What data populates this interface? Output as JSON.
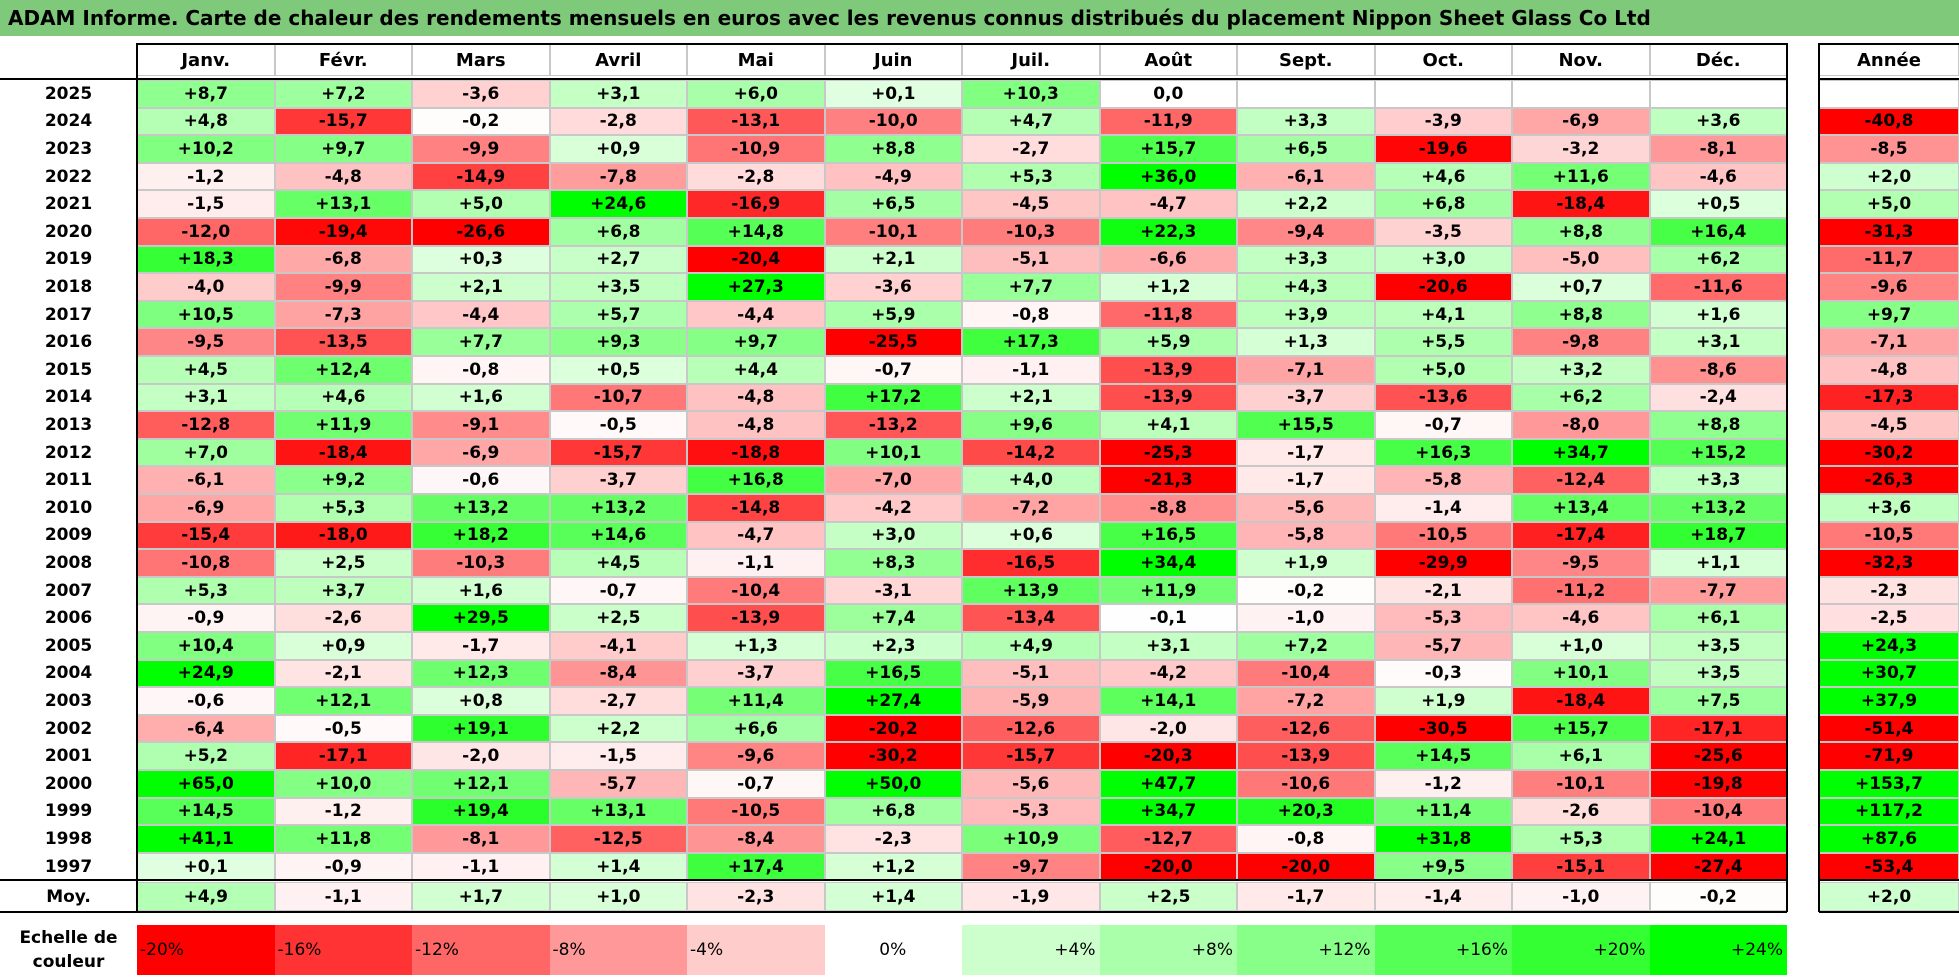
{
  "title": "ADAM Informe. Carte de chaleur des rendements mensuels en euros avec les revenus connus distribués du placement Nippon Sheet Glass Co Ltd",
  "chart_data": {
    "type": "heatmap",
    "columns": [
      "Janv.",
      "Févr.",
      "Mars",
      "Avril",
      "Mai",
      "Juin",
      "Juil.",
      "Août",
      "Sept.",
      "Oct.",
      "Nov.",
      "Déc."
    ],
    "year_column": "Année",
    "rows": [
      {
        "year": "2025",
        "values": [
          "+8,7",
          "+7,2",
          "-3,6",
          "+3,1",
          "+6,0",
          "+0,1",
          "+10,3",
          "0,0",
          "",
          "",
          "",
          ""
        ],
        "annual": ""
      },
      {
        "year": "2024",
        "values": [
          "+4,8",
          "-15,7",
          "-0,2",
          "-2,8",
          "-13,1",
          "-10,0",
          "+4,7",
          "-11,9",
          "+3,3",
          "-3,9",
          "-6,9",
          "+3,6"
        ],
        "annual": "-40,8"
      },
      {
        "year": "2023",
        "values": [
          "+10,2",
          "+9,7",
          "-9,9",
          "+0,9",
          "-10,9",
          "+8,8",
          "-2,7",
          "+15,7",
          "+6,5",
          "-19,6",
          "-3,2",
          "-8,1"
        ],
        "annual": "-8,5"
      },
      {
        "year": "2022",
        "values": [
          "-1,2",
          "-4,8",
          "-14,9",
          "-7,8",
          "-2,8",
          "-4,9",
          "+5,3",
          "+36,0",
          "-6,1",
          "+4,6",
          "+11,6",
          "-4,6"
        ],
        "annual": "+2,0"
      },
      {
        "year": "2021",
        "values": [
          "-1,5",
          "+13,1",
          "+5,0",
          "+24,6",
          "-16,9",
          "+6,5",
          "-4,5",
          "-4,7",
          "+2,2",
          "+6,8",
          "-18,4",
          "+0,5"
        ],
        "annual": "+5,0"
      },
      {
        "year": "2020",
        "values": [
          "-12,0",
          "-19,4",
          "-26,6",
          "+6,8",
          "+14,8",
          "-10,1",
          "-10,3",
          "+22,3",
          "-9,4",
          "-3,5",
          "+8,8",
          "+16,4"
        ],
        "annual": "-31,3"
      },
      {
        "year": "2019",
        "values": [
          "+18,3",
          "-6,8",
          "+0,3",
          "+2,7",
          "-20,4",
          "+2,1",
          "-5,1",
          "-6,6",
          "+3,3",
          "+3,0",
          "-5,0",
          "+6,2"
        ],
        "annual": "-11,7"
      },
      {
        "year": "2018",
        "values": [
          "-4,0",
          "-9,9",
          "+2,1",
          "+3,5",
          "+27,3",
          "-3,6",
          "+7,7",
          "+1,2",
          "+4,3",
          "-20,6",
          "+0,7",
          "-11,6"
        ],
        "annual": "-9,6"
      },
      {
        "year": "2017",
        "values": [
          "+10,5",
          "-7,3",
          "-4,4",
          "+5,7",
          "-4,4",
          "+5,9",
          "-0,8",
          "-11,8",
          "+3,9",
          "+4,1",
          "+8,8",
          "+1,6"
        ],
        "annual": "+9,7"
      },
      {
        "year": "2016",
        "values": [
          "-9,5",
          "-13,5",
          "+7,7",
          "+9,3",
          "+9,7",
          "-25,5",
          "+17,3",
          "+5,9",
          "+1,3",
          "+5,5",
          "-9,8",
          "+3,1"
        ],
        "annual": "-7,1"
      },
      {
        "year": "2015",
        "values": [
          "+4,5",
          "+12,4",
          "-0,8",
          "+0,5",
          "+4,4",
          "-0,7",
          "-1,1",
          "-13,9",
          "-7,1",
          "+5,0",
          "+3,2",
          "-8,6"
        ],
        "annual": "-4,8"
      },
      {
        "year": "2014",
        "values": [
          "+3,1",
          "+4,6",
          "+1,6",
          "-10,7",
          "-4,8",
          "+17,2",
          "+2,1",
          "-13,9",
          "-3,7",
          "-13,6",
          "+6,2",
          "-2,4"
        ],
        "annual": "-17,3"
      },
      {
        "year": "2013",
        "values": [
          "-12,8",
          "+11,9",
          "-9,1",
          "-0,5",
          "-4,8",
          "-13,2",
          "+9,6",
          "+4,1",
          "+15,5",
          "-0,7",
          "-8,0",
          "+8,8"
        ],
        "annual": "-4,5"
      },
      {
        "year": "2012",
        "values": [
          "+7,0",
          "-18,4",
          "-6,9",
          "-15,7",
          "-18,8",
          "+10,1",
          "-14,2",
          "-25,3",
          "-1,7",
          "+16,3",
          "+34,7",
          "+15,2"
        ],
        "annual": "-30,2"
      },
      {
        "year": "2011",
        "values": [
          "-6,1",
          "+9,2",
          "-0,6",
          "-3,7",
          "+16,8",
          "-7,0",
          "+4,0",
          "-21,3",
          "-1,7",
          "-5,8",
          "-12,4",
          "+3,3"
        ],
        "annual": "-26,3"
      },
      {
        "year": "2010",
        "values": [
          "-6,9",
          "+5,3",
          "+13,2",
          "+13,2",
          "-14,8",
          "-4,2",
          "-7,2",
          "-8,8",
          "-5,6",
          "-1,4",
          "+13,4",
          "+13,2"
        ],
        "annual": "+3,6"
      },
      {
        "year": "2009",
        "values": [
          "-15,4",
          "-18,0",
          "+18,2",
          "+14,6",
          "-4,7",
          "+3,0",
          "+0,6",
          "+16,5",
          "-5,8",
          "-10,5",
          "-17,4",
          "+18,7"
        ],
        "annual": "-10,5"
      },
      {
        "year": "2008",
        "values": [
          "-10,8",
          "+2,5",
          "-10,3",
          "+4,5",
          "-1,1",
          "+8,3",
          "-16,5",
          "+34,4",
          "+1,9",
          "-29,9",
          "-9,5",
          "+1,1"
        ],
        "annual": "-32,3"
      },
      {
        "year": "2007",
        "values": [
          "+5,3",
          "+3,7",
          "+1,6",
          "-0,7",
          "-10,4",
          "-3,1",
          "+13,9",
          "+11,9",
          "-0,2",
          "-2,1",
          "-11,2",
          "-7,7"
        ],
        "annual": "-2,3"
      },
      {
        "year": "2006",
        "values": [
          "-0,9",
          "-2,6",
          "+29,5",
          "+2,5",
          "-13,9",
          "+7,4",
          "-13,4",
          "-0,1",
          "-1,0",
          "-5,3",
          "-4,6",
          "+6,1"
        ],
        "annual": "-2,5"
      },
      {
        "year": "2005",
        "values": [
          "+10,4",
          "+0,9",
          "-1,7",
          "-4,1",
          "+1,3",
          "+2,3",
          "+4,9",
          "+3,1",
          "+7,2",
          "-5,7",
          "+1,0",
          "+3,5"
        ],
        "annual": "+24,3"
      },
      {
        "year": "2004",
        "values": [
          "+24,9",
          "-2,1",
          "+12,3",
          "-8,4",
          "-3,7",
          "+16,5",
          "-5,1",
          "-4,2",
          "-10,4",
          "-0,3",
          "+10,1",
          "+3,5"
        ],
        "annual": "+30,7"
      },
      {
        "year": "2003",
        "values": [
          "-0,6",
          "+12,1",
          "+0,8",
          "-2,7",
          "+11,4",
          "+27,4",
          "-5,9",
          "+14,1",
          "-7,2",
          "+1,9",
          "-18,4",
          "+7,5"
        ],
        "annual": "+37,9"
      },
      {
        "year": "2002",
        "values": [
          "-6,4",
          "-0,5",
          "+19,1",
          "+2,2",
          "+6,6",
          "-20,2",
          "-12,6",
          "-2,0",
          "-12,6",
          "-30,5",
          "+15,7",
          "-17,1"
        ],
        "annual": "-51,4"
      },
      {
        "year": "2001",
        "values": [
          "+5,2",
          "-17,1",
          "-2,0",
          "-1,5",
          "-9,6",
          "-30,2",
          "-15,7",
          "-20,3",
          "-13,9",
          "+14,5",
          "+6,1",
          "-25,6"
        ],
        "annual": "-71,9"
      },
      {
        "year": "2000",
        "values": [
          "+65,0",
          "+10,0",
          "+12,1",
          "-5,7",
          "-0,7",
          "+50,0",
          "-5,6",
          "+47,7",
          "-10,6",
          "-1,2",
          "-10,1",
          "-19,8"
        ],
        "annual": "+153,7"
      },
      {
        "year": "1999",
        "values": [
          "+14,5",
          "-1,2",
          "+19,4",
          "+13,1",
          "-10,5",
          "+6,8",
          "-5,3",
          "+34,7",
          "+20,3",
          "+11,4",
          "-2,6",
          "-10,4"
        ],
        "annual": "+117,2"
      },
      {
        "year": "1998",
        "values": [
          "+41,1",
          "+11,8",
          "-8,1",
          "-12,5",
          "-8,4",
          "-2,3",
          "+10,9",
          "-12,7",
          "-0,8",
          "+31,8",
          "+5,3",
          "+24,1"
        ],
        "annual": "+87,6"
      },
      {
        "year": "1997",
        "values": [
          "+0,1",
          "-0,9",
          "-1,1",
          "+1,4",
          "+17,4",
          "+1,2",
          "-9,7",
          "-20,0",
          "-20,0",
          "+9,5",
          "-15,1",
          "-27,4"
        ],
        "annual": "-53,4"
      }
    ],
    "average": {
      "label": "Moy.",
      "values": [
        "+4,9",
        "-1,1",
        "+1,7",
        "+1,0",
        "-2,3",
        "+1,4",
        "-1,9",
        "+2,5",
        "-1,7",
        "-1,4",
        "-1,0",
        "-0,2"
      ],
      "annual": "+2,0"
    },
    "scale": {
      "label": "Echelle de couleur",
      "steps": [
        {
          "label": "-20%",
          "value": -20,
          "color": "#ff0000"
        },
        {
          "label": "-16%",
          "value": -16,
          "color": "#ff3333"
        },
        {
          "label": "-12%",
          "value": -12,
          "color": "#ff6666"
        },
        {
          "label": "-8%",
          "value": -8,
          "color": "#ff9999"
        },
        {
          "label": "-4%",
          "value": -4,
          "color": "#ffcccc"
        },
        {
          "label": "0%",
          "value": 0,
          "color": "#ffffff"
        },
        {
          "label": "+4%",
          "value": 4,
          "color": "#ccffcc"
        },
        {
          "label": "+8%",
          "value": 8,
          "color": "#aaffaa"
        },
        {
          "label": "+12%",
          "value": 12,
          "color": "#88ff88"
        },
        {
          "label": "+16%",
          "value": 16,
          "color": "#55ff55"
        },
        {
          "label": "+20%",
          "value": 20,
          "color": "#33ff33"
        },
        {
          "label": "+24%",
          "value": 24,
          "color": "#00ff00"
        }
      ]
    }
  }
}
